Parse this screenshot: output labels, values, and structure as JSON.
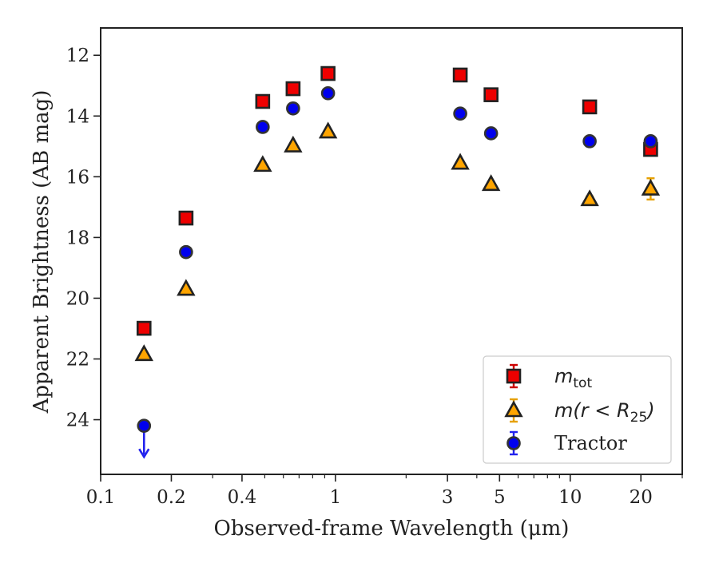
{
  "chart_data": {
    "type": "scatter",
    "xscale": "log",
    "yaxis_inverted": true,
    "xlim": [
      0.1,
      30
    ],
    "ylim": [
      25.8,
      11.1
    ],
    "xlabel": "Observed-frame Wavelength (μm)",
    "ylabel": "Apparent Brightness (AB mag)",
    "x_major_ticks": [
      0.1,
      0.2,
      0.4,
      1,
      3,
      5,
      10,
      20
    ],
    "x_tick_labels": [
      "0.1",
      "0.2",
      "0.4",
      "1",
      "3",
      "5",
      "10",
      "20"
    ],
    "y_major_ticks": [
      12,
      14,
      16,
      18,
      20,
      22,
      24
    ],
    "y_tick_labels": [
      "12",
      "14",
      "16",
      "18",
      "20",
      "22",
      "24"
    ],
    "grid": false,
    "legend_position": "lower-right",
    "legend": {
      "items": [
        {
          "key": "m_tot",
          "math_main": "m",
          "math_sub": "tot",
          "math_rest": ""
        },
        {
          "key": "m_r25",
          "math_main": "m(r < R",
          "math_sub": "25",
          "math_rest": ")"
        },
        {
          "key": "tractor",
          "text": "Tractor"
        }
      ]
    },
    "series": [
      {
        "key": "m_tot",
        "marker": "square",
        "fill": "#ee0000",
        "edge": "#222222",
        "errcolor": "#cc0000",
        "points": [
          {
            "x": 0.153,
            "y": 20.99,
            "err": 0.05
          },
          {
            "x": 0.231,
            "y": 17.36,
            "err": 0.05
          },
          {
            "x": 0.49,
            "y": 13.52,
            "err": 0.05
          },
          {
            "x": 0.66,
            "y": 13.1,
            "err": 0.05
          },
          {
            "x": 0.93,
            "y": 12.6,
            "err": 0.05
          },
          {
            "x": 3.4,
            "y": 12.65,
            "err": 0.05
          },
          {
            "x": 4.6,
            "y": 13.3,
            "err": 0.05
          },
          {
            "x": 12.1,
            "y": 13.7,
            "err": 0.05
          },
          {
            "x": 22.0,
            "y": 15.1,
            "err": 0.2
          }
        ]
      },
      {
        "key": "m_r25",
        "marker": "triangle",
        "fill": "#ffa500",
        "edge": "#222222",
        "errcolor": "#e6a000",
        "points": [
          {
            "x": 0.153,
            "y": 21.85,
            "err": 0.05
          },
          {
            "x": 0.231,
            "y": 19.7,
            "err": 0.05
          },
          {
            "x": 0.49,
            "y": 15.62,
            "err": 0.05
          },
          {
            "x": 0.66,
            "y": 14.98,
            "err": 0.05
          },
          {
            "x": 0.93,
            "y": 14.52,
            "err": 0.05
          },
          {
            "x": 3.4,
            "y": 15.55,
            "err": 0.05
          },
          {
            "x": 4.6,
            "y": 16.25,
            "err": 0.05
          },
          {
            "x": 12.1,
            "y": 16.75,
            "err": 0.1
          },
          {
            "x": 22.0,
            "y": 16.4,
            "err": 0.35
          }
        ]
      },
      {
        "key": "tractor",
        "marker": "circle",
        "fill": "#0000ee",
        "edge": "#333333",
        "errcolor": "#2222ee",
        "points": [
          {
            "x": 0.153,
            "y": 24.2,
            "err": 0.05,
            "upper_limit": true
          },
          {
            "x": 0.231,
            "y": 18.48,
            "err": 0.05
          },
          {
            "x": 0.49,
            "y": 14.36,
            "err": 0.05
          },
          {
            "x": 0.66,
            "y": 13.75,
            "err": 0.05
          },
          {
            "x": 0.93,
            "y": 13.25,
            "err": 0.05
          },
          {
            "x": 3.4,
            "y": 13.92,
            "err": 0.05
          },
          {
            "x": 4.6,
            "y": 14.57,
            "err": 0.05
          },
          {
            "x": 12.1,
            "y": 14.83,
            "err": 0.05
          },
          {
            "x": 22.0,
            "y": 14.83,
            "err": 0.1
          }
        ]
      }
    ]
  }
}
